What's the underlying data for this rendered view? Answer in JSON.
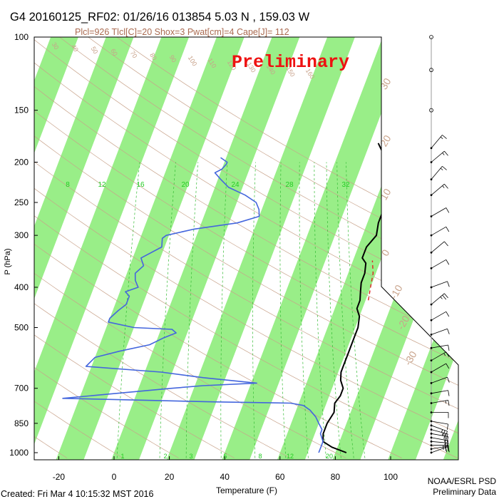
{
  "colors": {
    "background": "#ffffff",
    "isotherm_band": "#99ee88",
    "dry_adiabat": "#c8a28a",
    "mixing_ratio": "#33bb33",
    "temperature": "#000000",
    "dewpoint": "#4466dd",
    "parcel": "#dd2222",
    "preliminary": "#ee1111",
    "wind": "#000000",
    "index_text": "#aa6a50"
  },
  "header": {
    "title": "G4 20160125_RF02: 01/26/16 013854   5.03 N , 159.03 W",
    "indices": "Plcl=926 Tlcl[C]=20 Shox=3 Pwat[cm]=4 Cape[J]= 112",
    "stamp": "Preliminary"
  },
  "footer": {
    "created": "Created: Fri Mar  4 10:15:32 MST 2016",
    "agency": "NOAA/ESRL PSD",
    "status": "Preliminary Data"
  },
  "chart_data": {
    "type": "line",
    "subtype": "skew-T log-P sounding",
    "xlabel": "Temperature (F)",
    "ylabel": "P (hPa)",
    "xlim": [
      -28,
      110
    ],
    "ylim": [
      1030,
      100
    ],
    "y_scale": "log",
    "x_ticks": [
      -20,
      0,
      20,
      40,
      60,
      80,
      100
    ],
    "y_ticks": [
      100,
      150,
      200,
      250,
      300,
      400,
      500,
      700,
      850,
      1000
    ],
    "isotherm_labels": [
      "-30",
      "-20",
      "-10",
      "0",
      "10",
      "20",
      "30"
    ],
    "mixing_ratio_labels_top": [
      "8",
      "12",
      "16",
      "20",
      "24",
      "28",
      "32"
    ],
    "mixing_ratio_labels_bottom": [
      "1",
      "2",
      "3",
      "5",
      "8",
      "12",
      "20"
    ],
    "dry_adiabat_labels": [
      "30",
      "40",
      "50",
      "60",
      "70",
      "80",
      "90",
      "100",
      "110",
      "120",
      "130",
      "140",
      "150",
      "160"
    ],
    "series": [
      {
        "name": "Temperature",
        "points": [
          [
            1000,
            84
          ],
          [
            970,
            78
          ],
          [
            940,
            74
          ],
          [
            900,
            73
          ],
          [
            850,
            73
          ],
          [
            800,
            74
          ],
          [
            760,
            73
          ],
          [
            730,
            74
          ],
          [
            700,
            74
          ],
          [
            670,
            72
          ],
          [
            640,
            71
          ],
          [
            610,
            71
          ],
          [
            580,
            71
          ],
          [
            550,
            71
          ],
          [
            520,
            71
          ],
          [
            500,
            71
          ],
          [
            470,
            70
          ],
          [
            450,
            68
          ],
          [
            430,
            68
          ],
          [
            410,
            67
          ],
          [
            390,
            66
          ],
          [
            370,
            66
          ],
          [
            350,
            65
          ],
          [
            340,
            63
          ],
          [
            330,
            63
          ],
          [
            320,
            63
          ],
          [
            300,
            65
          ],
          [
            280,
            64
          ],
          [
            260,
            64
          ],
          [
            240,
            64
          ],
          [
            220,
            62
          ],
          [
            200,
            59
          ],
          [
            190,
            56
          ],
          [
            180,
            53
          ]
        ]
      },
      {
        "name": "Dewpoint",
        "points": [
          [
            1000,
            74
          ],
          [
            970,
            74
          ],
          [
            940,
            74
          ],
          [
            900,
            72
          ],
          [
            880,
            72
          ],
          [
            850,
            70
          ],
          [
            820,
            68
          ],
          [
            790,
            65
          ],
          [
            770,
            62
          ],
          [
            760,
            57
          ],
          [
            755,
            30
          ],
          [
            740,
            -26
          ],
          [
            700,
            12
          ],
          [
            690,
            23
          ],
          [
            680,
            42
          ],
          [
            660,
            22
          ],
          [
            640,
            6
          ],
          [
            620,
            -22
          ],
          [
            590,
            -20
          ],
          [
            570,
            -12
          ],
          [
            550,
            -2
          ],
          [
            530,
            2
          ],
          [
            515,
            6
          ],
          [
            505,
            4
          ],
          [
            500,
            -10
          ],
          [
            485,
            -20
          ],
          [
            475,
            -20
          ],
          [
            455,
            -18
          ],
          [
            440,
            -16
          ],
          [
            420,
            -16
          ],
          [
            410,
            -18
          ],
          [
            400,
            -14
          ],
          [
            385,
            -16
          ],
          [
            370,
            -17
          ],
          [
            355,
            -15
          ],
          [
            340,
            -17
          ],
          [
            320,
            -11
          ],
          [
            305,
            -12
          ],
          [
            300,
            -11
          ],
          [
            290,
            -2
          ],
          [
            280,
            13
          ],
          [
            270,
            20
          ],
          [
            260,
            19
          ],
          [
            250,
            17
          ],
          [
            240,
            12
          ],
          [
            230,
            5
          ],
          [
            220,
            1
          ],
          [
            212,
            -2
          ],
          [
            208,
            0
          ],
          [
            202,
            1
          ],
          [
            200,
            1
          ],
          [
            195,
            -2
          ]
        ]
      },
      {
        "name": "Parcel",
        "points": [
          [
            430,
            71
          ],
          [
            400,
            70
          ],
          [
            370,
            69
          ],
          [
            345,
            67
          ]
        ]
      }
    ],
    "wind_barbs": [
      {
        "p": 1000,
        "dir": 70,
        "spd": 12
      },
      {
        "p": 980,
        "dir": 80,
        "spd": 15
      },
      {
        "p": 960,
        "dir": 90,
        "spd": 17
      },
      {
        "p": 940,
        "dir": 95,
        "spd": 20
      },
      {
        "p": 920,
        "dir": 100,
        "spd": 22
      },
      {
        "p": 900,
        "dir": 100,
        "spd": 20
      },
      {
        "p": 880,
        "dir": 105,
        "spd": 18
      },
      {
        "p": 860,
        "dir": 110,
        "spd": 15
      },
      {
        "p": 840,
        "dir": 100,
        "spd": 12
      },
      {
        "p": 800,
        "dir": 90,
        "spd": 10
      },
      {
        "p": 760,
        "dir": 80,
        "spd": 8
      },
      {
        "p": 720,
        "dir": 80,
        "spd": 10
      },
      {
        "p": 680,
        "dir": 70,
        "spd": 12
      },
      {
        "p": 640,
        "dir": 60,
        "spd": 10
      },
      {
        "p": 600,
        "dir": 60,
        "spd": 8
      },
      {
        "p": 560,
        "dir": 80,
        "spd": 10
      },
      {
        "p": 520,
        "dir": 70,
        "spd": 12
      },
      {
        "p": 480,
        "dir": 60,
        "spd": 14
      },
      {
        "p": 440,
        "dir": 50,
        "spd": 16
      },
      {
        "p": 400,
        "dir": 70,
        "spd": 12
      },
      {
        "p": 360,
        "dir": 60,
        "spd": 14
      },
      {
        "p": 330,
        "dir": 50,
        "spd": 10
      },
      {
        "p": 300,
        "dir": 60,
        "spd": 12
      },
      {
        "p": 270,
        "dir": 60,
        "spd": 10
      },
      {
        "p": 240,
        "dir": 50,
        "spd": 8
      },
      {
        "p": 220,
        "dir": 40,
        "spd": 6
      },
      {
        "p": 200,
        "dir": 50,
        "spd": 8
      },
      {
        "p": 185,
        "dir": 40,
        "spd": 6
      },
      {
        "p": 150,
        "dir": 0,
        "spd": 0
      },
      {
        "p": 120,
        "dir": 0,
        "spd": 0
      },
      {
        "p": 100,
        "dir": 0,
        "spd": 0
      }
    ]
  }
}
